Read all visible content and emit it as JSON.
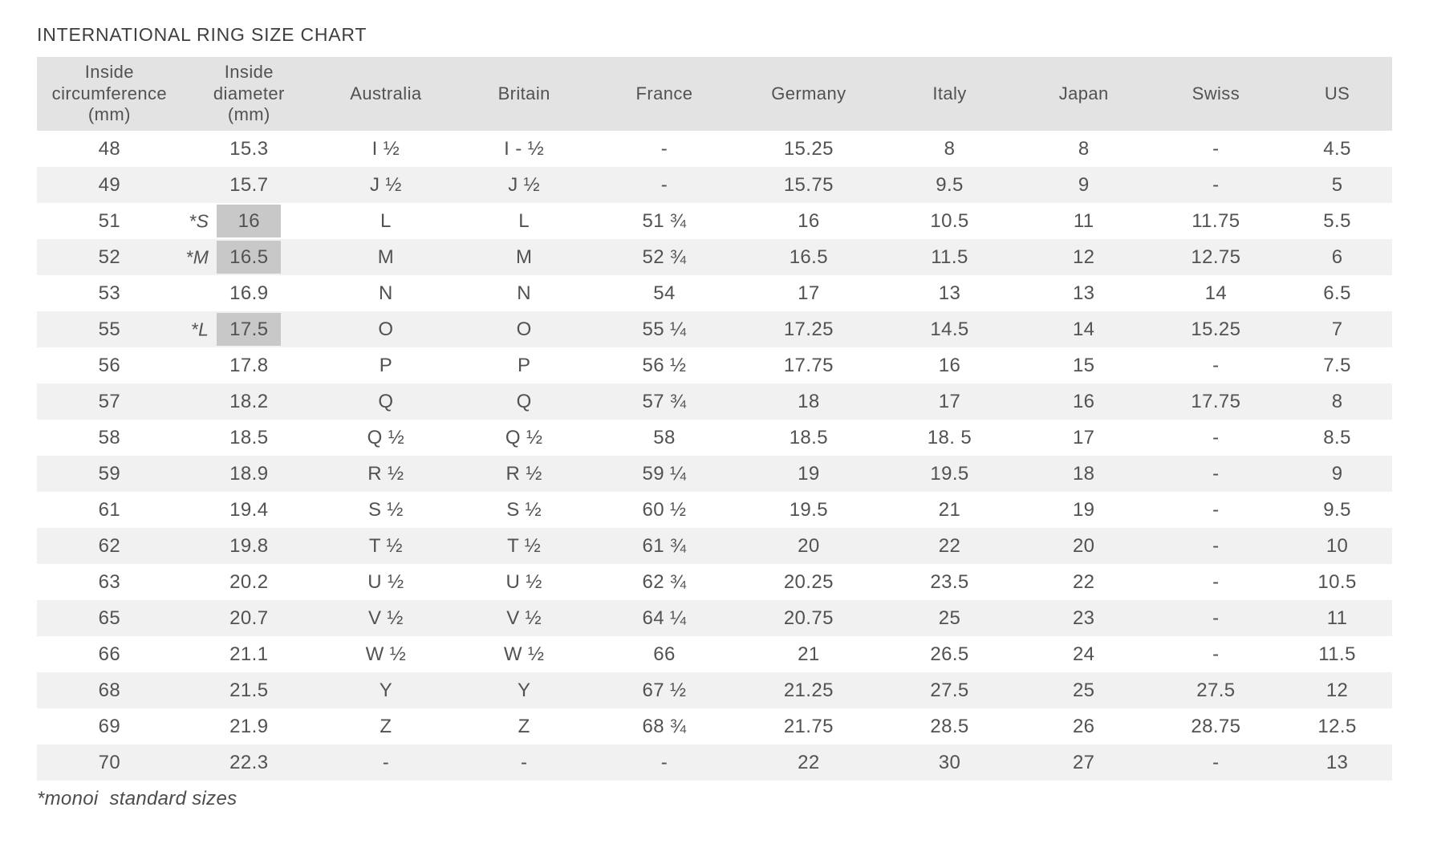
{
  "title": "INTERNATIONAL RING SIZE CHART",
  "footnote": "*monoi  standard sizes",
  "colors": {
    "header_bg": "#e3e3e3",
    "stripe_bg": "#f1f1f1",
    "highlight_bg": "#c8c8c8",
    "text": "#525252"
  },
  "table": {
    "columns": [
      {
        "key": "circumference",
        "label": "Inside\ncircumference\n(mm)"
      },
      {
        "key": "diameter",
        "label": "Inside\ndiameter\n(mm)"
      },
      {
        "key": "australia",
        "label": "Australia"
      },
      {
        "key": "britain",
        "label": "Britain"
      },
      {
        "key": "france",
        "label": "France"
      },
      {
        "key": "germany",
        "label": "Germany"
      },
      {
        "key": "italy",
        "label": "Italy"
      },
      {
        "key": "japan",
        "label": "Japan"
      },
      {
        "key": "swiss",
        "label": "Swiss"
      },
      {
        "key": "us",
        "label": "US"
      }
    ],
    "rows": [
      {
        "circumference": "48",
        "size_label": "",
        "diameter": "15.3",
        "diameter_highlighted": false,
        "australia": "I ½",
        "britain": "I - ½",
        "france": "-",
        "germany": "15.25",
        "italy": "8",
        "japan": "8",
        "swiss": "-",
        "us": "4.5"
      },
      {
        "circumference": "49",
        "size_label": "",
        "diameter": "15.7",
        "diameter_highlighted": false,
        "australia": "J ½",
        "britain": "J ½",
        "france": "-",
        "germany": "15.75",
        "italy": "9.5",
        "japan": "9",
        "swiss": "-",
        "us": "5"
      },
      {
        "circumference": "51",
        "size_label": "*S",
        "diameter": "16",
        "diameter_highlighted": true,
        "australia": "L",
        "britain": "L",
        "france": "51 ¾",
        "germany": "16",
        "italy": "10.5",
        "japan": "11",
        "swiss": "11.75",
        "us": "5.5"
      },
      {
        "circumference": "52",
        "size_label": "*M",
        "diameter": "16.5",
        "diameter_highlighted": true,
        "australia": "M",
        "britain": "M",
        "france": "52 ¾",
        "germany": "16.5",
        "italy": "11.5",
        "japan": "12",
        "swiss": "12.75",
        "us": "6"
      },
      {
        "circumference": "53",
        "size_label": "",
        "diameter": "16.9",
        "diameter_highlighted": false,
        "australia": "N",
        "britain": "N",
        "france": "54",
        "germany": "17",
        "italy": "13",
        "japan": "13",
        "swiss": "14",
        "us": "6.5"
      },
      {
        "circumference": "55",
        "size_label": "*L",
        "diameter": "17.5",
        "diameter_highlighted": true,
        "australia": "O",
        "britain": "O",
        "france": "55 ¼",
        "germany": "17.25",
        "italy": "14.5",
        "japan": "14",
        "swiss": "15.25",
        "us": "7"
      },
      {
        "circumference": "56",
        "size_label": "",
        "diameter": "17.8",
        "diameter_highlighted": false,
        "australia": "P",
        "britain": "P",
        "france": "56 ½",
        "germany": "17.75",
        "italy": "16",
        "japan": "15",
        "swiss": "-",
        "us": "7.5"
      },
      {
        "circumference": "57",
        "size_label": "",
        "diameter": "18.2",
        "diameter_highlighted": false,
        "australia": "Q",
        "britain": "Q",
        "france": "57 ¾",
        "germany": "18",
        "italy": "17",
        "japan": "16",
        "swiss": "17.75",
        "us": "8"
      },
      {
        "circumference": "58",
        "size_label": "",
        "diameter": "18.5",
        "diameter_highlighted": false,
        "australia": "Q ½",
        "britain": "Q ½",
        "france": "58",
        "germany": "18.5",
        "italy": "18. 5",
        "japan": "17",
        "swiss": "-",
        "us": "8.5"
      },
      {
        "circumference": "59",
        "size_label": "",
        "diameter": "18.9",
        "diameter_highlighted": false,
        "australia": "R ½",
        "britain": "R ½",
        "france": "59 ¼",
        "germany": "19",
        "italy": "19.5",
        "japan": "18",
        "swiss": "-",
        "us": "9"
      },
      {
        "circumference": "61",
        "size_label": "",
        "diameter": "19.4",
        "diameter_highlighted": false,
        "australia": "S ½",
        "britain": "S ½",
        "france": "60 ½",
        "germany": "19.5",
        "italy": "21",
        "japan": "19",
        "swiss": "-",
        "us": "9.5"
      },
      {
        "circumference": "62",
        "size_label": "",
        "diameter": "19.8",
        "diameter_highlighted": false,
        "australia": "T ½",
        "britain": "T ½",
        "france": "61 ¾",
        "germany": "20",
        "italy": "22",
        "japan": "20",
        "swiss": "-",
        "us": "10"
      },
      {
        "circumference": "63",
        "size_label": "",
        "diameter": "20.2",
        "diameter_highlighted": false,
        "australia": "U ½",
        "britain": "U ½",
        "france": "62 ¾",
        "germany": "20.25",
        "italy": "23.5",
        "japan": "22",
        "swiss": "-",
        "us": "10.5"
      },
      {
        "circumference": "65",
        "size_label": "",
        "diameter": "20.7",
        "diameter_highlighted": false,
        "australia": "V ½",
        "britain": "V ½",
        "france": "64 ¼",
        "germany": "20.75",
        "italy": "25",
        "japan": "23",
        "swiss": "-",
        "us": "11"
      },
      {
        "circumference": "66",
        "size_label": "",
        "diameter": "21.1",
        "diameter_highlighted": false,
        "australia": "W ½",
        "britain": "W ½",
        "france": "66",
        "germany": "21",
        "italy": "26.5",
        "japan": "24",
        "swiss": "-",
        "us": "11.5"
      },
      {
        "circumference": "68",
        "size_label": "",
        "diameter": "21.5",
        "diameter_highlighted": false,
        "australia": "Y",
        "britain": "Y",
        "france": "67 ½",
        "germany": "21.25",
        "italy": "27.5",
        "japan": "25",
        "swiss": "27.5",
        "us": "12"
      },
      {
        "circumference": "69",
        "size_label": "",
        "diameter": "21.9",
        "diameter_highlighted": false,
        "australia": "Z",
        "britain": "Z",
        "france": "68 ¾",
        "germany": "21.75",
        "italy": "28.5",
        "japan": "26",
        "swiss": "28.75",
        "us": "12.5"
      },
      {
        "circumference": "70",
        "size_label": "",
        "diameter": "22.3",
        "diameter_highlighted": false,
        "australia": "-",
        "britain": "-",
        "france": "-",
        "germany": "22",
        "italy": "30",
        "japan": "27",
        "swiss": "-",
        "us": "13"
      }
    ]
  }
}
